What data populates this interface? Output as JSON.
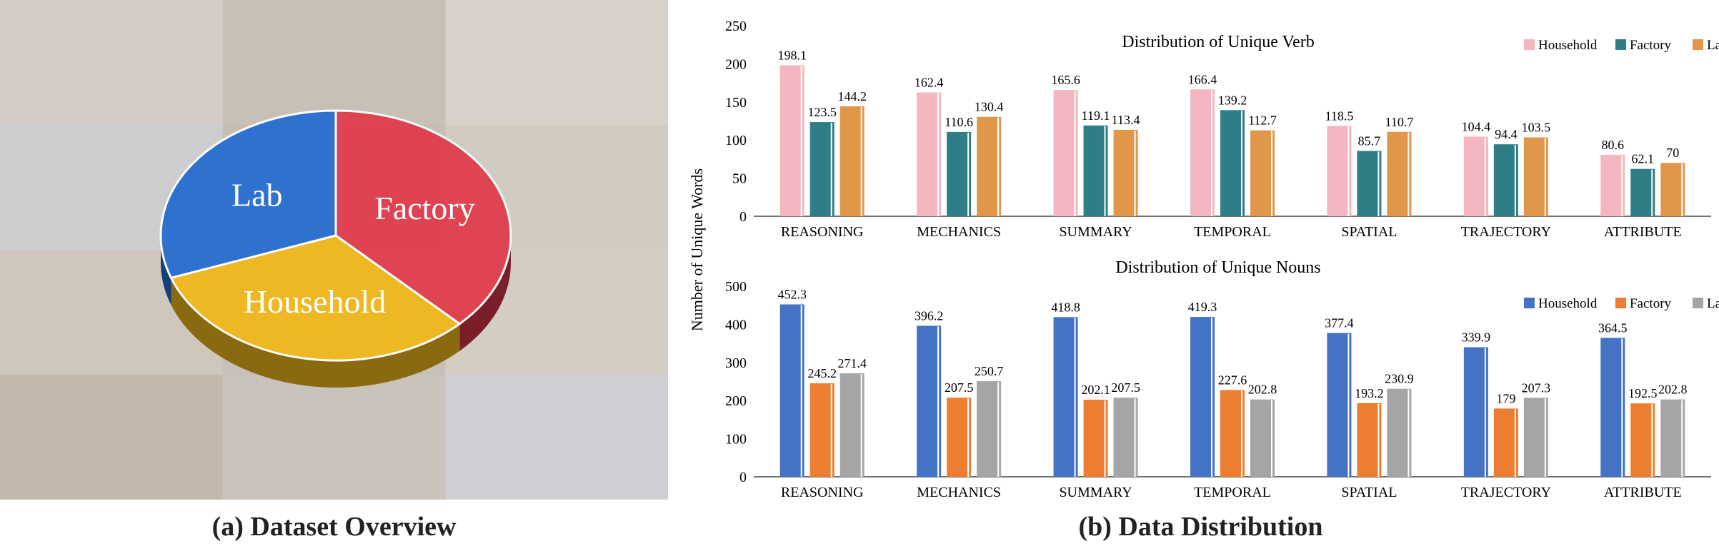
{
  "overview": {
    "caption": "(a) Dataset Overview",
    "pie": {
      "slices": [
        {
          "label": "Factory",
          "color": "#e0404f",
          "side": "#7a1e2a",
          "value": 0.375
        },
        {
          "label": "Household",
          "color": "#f0b820",
          "side": "#8a6a10",
          "value": 0.32
        },
        {
          "label": "Lab",
          "color": "#2a6fd0",
          "side": "#15407a",
          "value": 0.305
        }
      ]
    },
    "background_tint": "#d9d4cc"
  },
  "distribution": {
    "caption": "(b) Data Distribution",
    "ylabel": "Number of Unique Words"
  },
  "chart_data": [
    {
      "type": "bar",
      "title": "Distribution of Unique Verb",
      "ylabel": "Number of Unique Words",
      "categories": [
        "REASONING",
        "MECHANICS",
        "SUMMARY",
        "TEMPORAL",
        "SPATIAL",
        "TRAJECTORY",
        "ATTRIBUTE"
      ],
      "series": [
        {
          "name": "Household",
          "color": "#f4b6c0",
          "values": [
            198.1,
            162.4,
            165.6,
            166.4,
            118.5,
            104.4,
            80.6
          ]
        },
        {
          "name": "Factory",
          "color": "#2e7d87",
          "values": [
            123.5,
            110.6,
            119.1,
            139.2,
            85.7,
            94.4,
            62.1
          ]
        },
        {
          "name": "Lab",
          "color": "#e0974a",
          "values": [
            144.2,
            130.4,
            113.4,
            112.7,
            110.7,
            103.5,
            70
          ]
        }
      ],
      "ylim": [
        0,
        250
      ],
      "yticks": [
        0,
        50,
        100,
        150,
        200,
        250
      ],
      "legend": "top-right",
      "grid": false
    },
    {
      "type": "bar",
      "title": "Distribution of Unique Nouns",
      "ylabel": "Number of Unique Words",
      "categories": [
        "REASONING",
        "MECHANICS",
        "SUMMARY",
        "TEMPORAL",
        "SPATIAL",
        "TRAJECTORY",
        "ATTRIBUTE"
      ],
      "series": [
        {
          "name": "Household",
          "color": "#4472c4",
          "values": [
            452.3,
            396.2,
            418.8,
            419.3,
            377.4,
            339.9,
            364.5
          ]
        },
        {
          "name": "Factory",
          "color": "#ed7d31",
          "values": [
            245.2,
            207.5,
            202.1,
            227.6,
            193.2,
            179,
            192.5
          ]
        },
        {
          "name": "Lab",
          "color": "#a5a5a5",
          "values": [
            271.4,
            250.7,
            207.5,
            202.8,
            230.9,
            207.3,
            202.8
          ]
        }
      ],
      "ylim": [
        0,
        500
      ],
      "yticks": [
        0,
        100,
        200,
        300,
        400,
        500
      ],
      "legend": "top-right",
      "grid": false
    }
  ]
}
